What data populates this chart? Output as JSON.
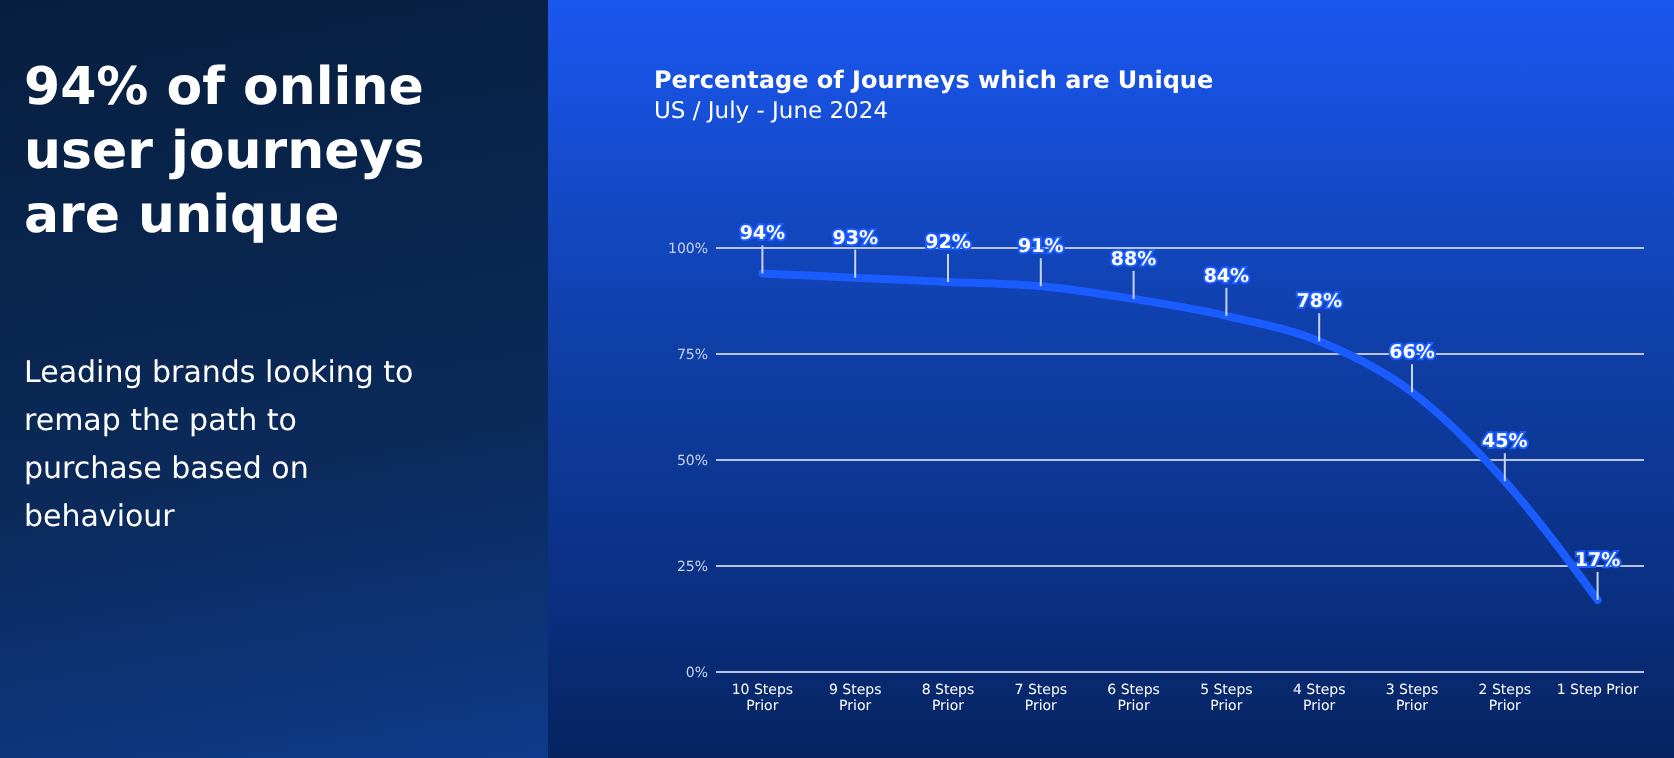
{
  "chart_data": [
    {
      "type": "other",
      "title": "94% of online user journeys are unique",
      "annotations": [
        "Leading brands looking to remap the path to purchase based on behaviour"
      ]
    },
    {
      "type": "line",
      "title": "Percentage of Journeys which are Unique",
      "subtitle": "US / July - June 2024",
      "categories": [
        "10 Steps Prior",
        "9 Steps Prior",
        "8 Steps Prior",
        "7 Steps Prior",
        "6 Steps Prior",
        "5 Steps Prior",
        "4 Steps Prior",
        "3 Steps Prior",
        "2 Steps Prior",
        "1 Step Prior"
      ],
      "series": [
        {
          "color": "#1a5cff",
          "values": [
            94,
            93,
            92,
            91,
            88,
            84,
            78,
            66,
            45,
            17
          ]
        }
      ],
      "value_labels": [
        "94%",
        "93%",
        "92%",
        "91%",
        "88%",
        "84%",
        "78%",
        "66%",
        "45%",
        "17%"
      ],
      "ylim": [
        0,
        100
      ],
      "yticks": [
        {
          "value": 0,
          "label": "0%"
        },
        {
          "value": 25,
          "label": "25%"
        },
        {
          "value": 50,
          "label": "50%"
        },
        {
          "value": 75,
          "label": "75%"
        },
        {
          "value": 100,
          "label": "100%"
        }
      ],
      "grid": "y",
      "marker": "none",
      "line_style": "solid"
    }
  ]
}
